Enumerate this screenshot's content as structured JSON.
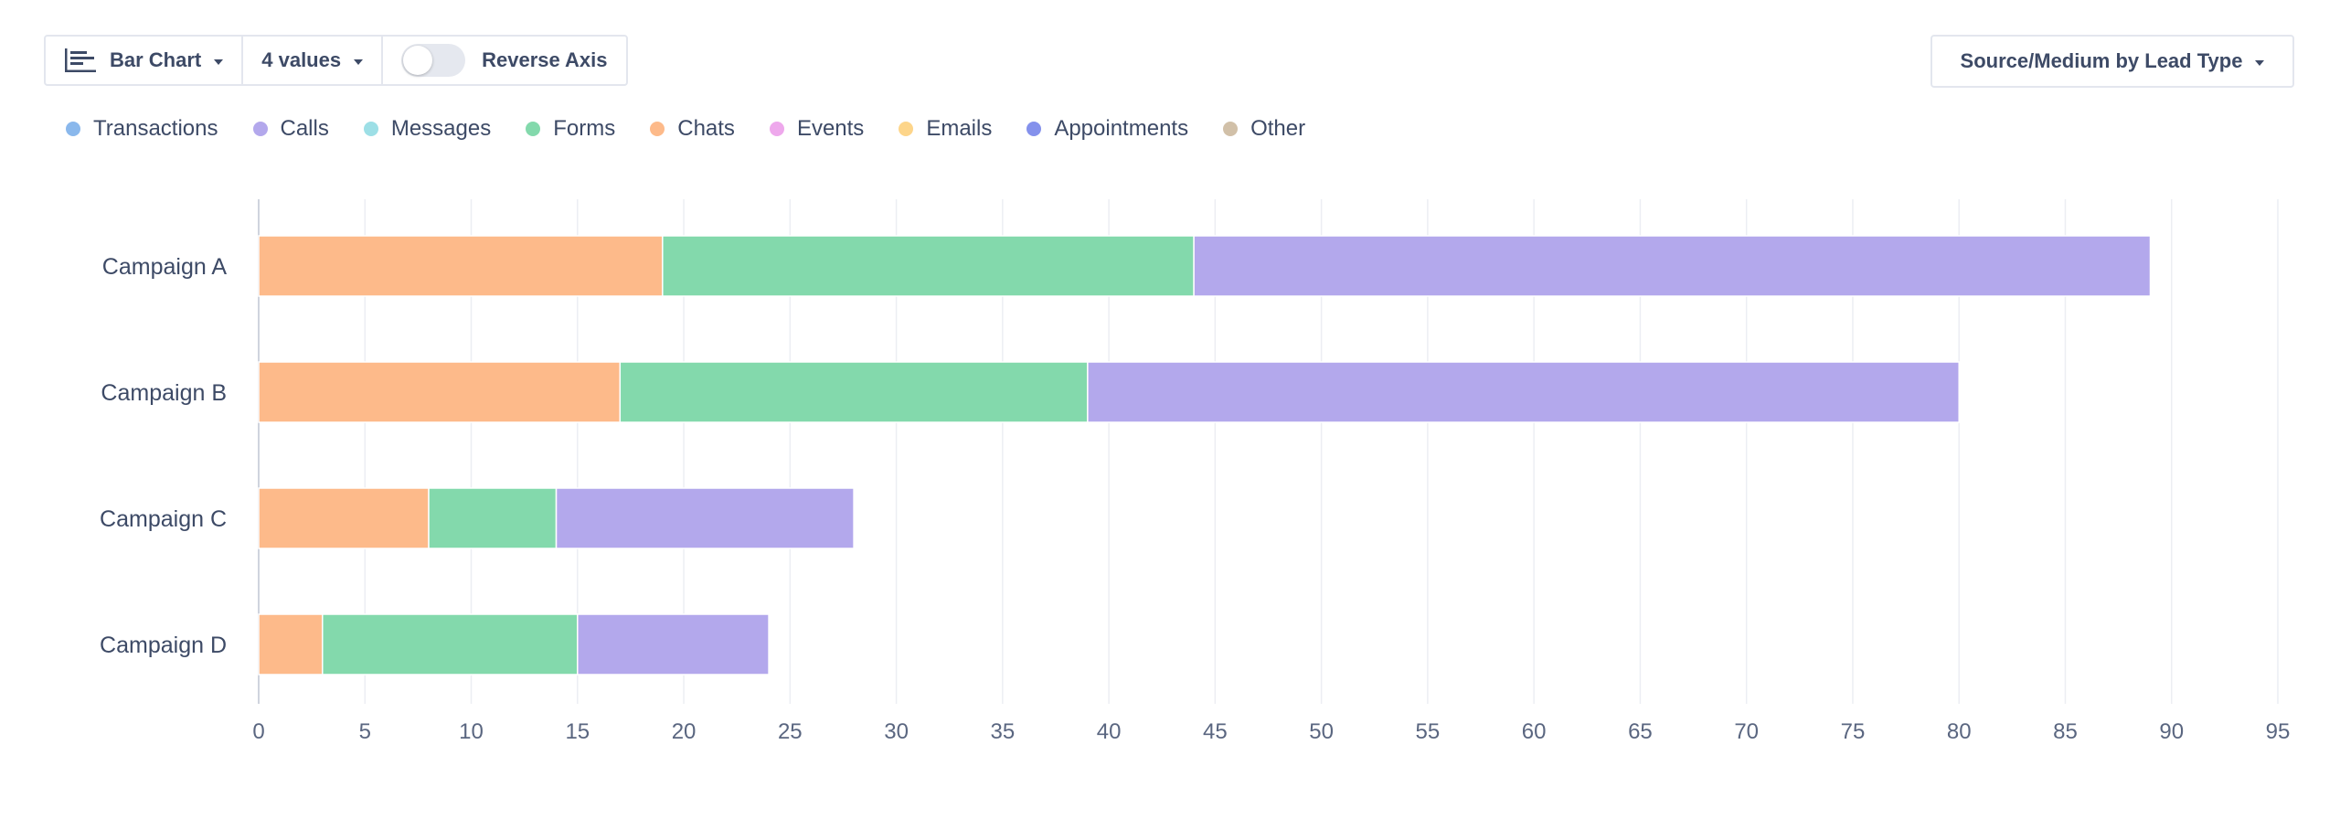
{
  "toolbar": {
    "chart_type_label": "Bar Chart",
    "chart_type_icon": "bar-chart-icon",
    "values_label": "4 values",
    "reverse_axis_label": "Reverse Axis",
    "reverse_axis_on": false
  },
  "source_dropdown": {
    "label": "Source/Medium by Lead Type"
  },
  "legend": [
    {
      "label": "Transactions",
      "color": "#8ab8ec"
    },
    {
      "label": "Calls",
      "color": "#b3a8ec"
    },
    {
      "label": "Messages",
      "color": "#9ddfe6"
    },
    {
      "label": "Forms",
      "color": "#83d9ac"
    },
    {
      "label": "Chats",
      "color": "#fdba8a"
    },
    {
      "label": "Events",
      "color": "#eea8ec"
    },
    {
      "label": "Emails",
      "color": "#fdd58a"
    },
    {
      "label": "Appointments",
      "color": "#8491ec"
    },
    {
      "label": "Other",
      "color": "#d1c0a8"
    }
  ],
  "chart_data": {
    "type": "bar",
    "orientation": "horizontal",
    "stacked": true,
    "categories": [
      "Campaign A",
      "Campaign B",
      "Campaign C",
      "Campaign D"
    ],
    "series": [
      {
        "name": "Chats",
        "color": "#fdba8a",
        "values": [
          19,
          17,
          8,
          3
        ]
      },
      {
        "name": "Forms",
        "color": "#83d9ac",
        "values": [
          25,
          22,
          6,
          12
        ]
      },
      {
        "name": "Calls",
        "color": "#b3a8ec",
        "values": [
          45,
          41,
          14,
          9
        ]
      }
    ],
    "xlim": [
      0,
      95
    ],
    "x_ticks": [
      0,
      5,
      10,
      15,
      20,
      25,
      30,
      35,
      40,
      45,
      50,
      55,
      60,
      65,
      70,
      75,
      80,
      85,
      90,
      95
    ],
    "grid": true,
    "legend_position": "top-left",
    "title": "",
    "xlabel": "",
    "ylabel": ""
  }
}
